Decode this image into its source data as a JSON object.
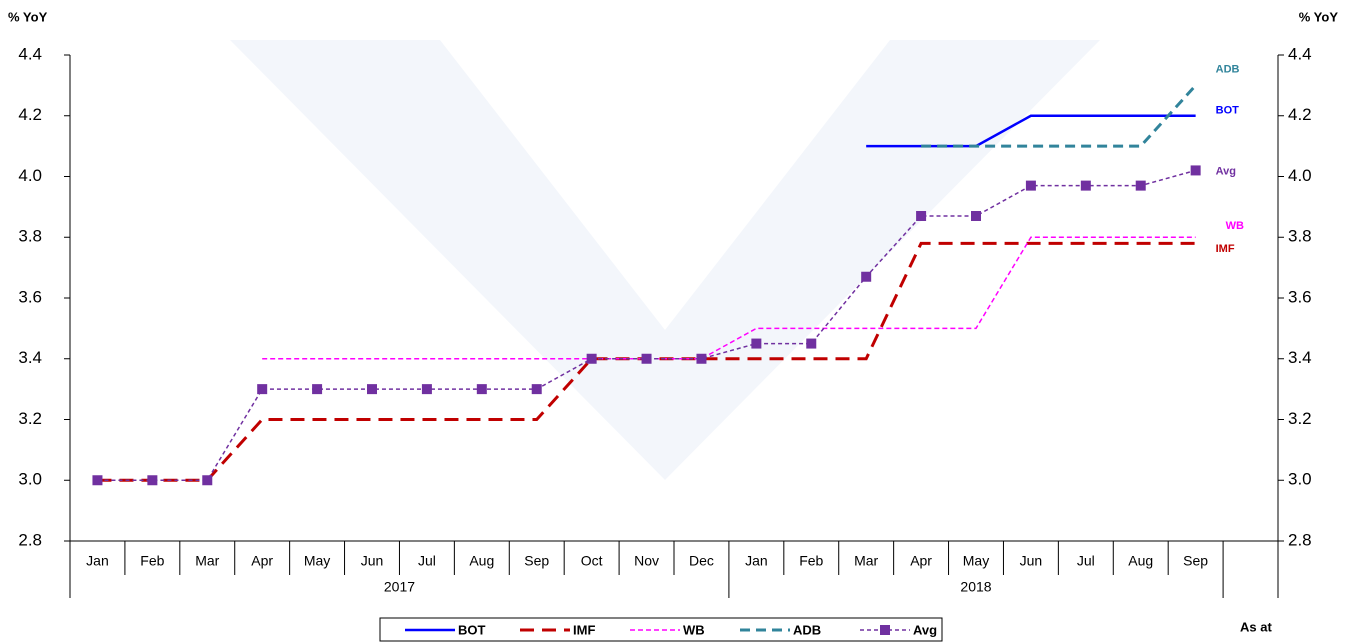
{
  "chart_data": {
    "type": "line",
    "y_label": "% YoY",
    "y2_label": "% YoY",
    "note": "As at",
    "categories": [
      "Jan",
      "Feb",
      "Mar",
      "Apr",
      "May",
      "Jun",
      "Jul",
      "Aug",
      "Sep",
      "Oct",
      "Nov",
      "Dec",
      "Jan",
      "Feb",
      "Mar",
      "Apr",
      "May",
      "Jun",
      "Jul",
      "Aug",
      "Sep",
      null
    ],
    "x_groups": [
      {
        "label": "2017",
        "span": 12
      },
      {
        "label": "2018",
        "span": 9
      }
    ],
    "ylim": [
      2.8,
      4.4
    ],
    "yticks": [
      2.8,
      {
        "value": 3,
        "label": "3.0"
      },
      3.2,
      3.4,
      3.6,
      3.8,
      {
        "value": 4,
        "label": "4.0"
      },
      4.2,
      4.4
    ],
    "y2lim": [
      2.8,
      4.4
    ],
    "y2ticks": [
      2.8,
      {
        "value": 3,
        "label": "3.0"
      },
      3.2,
      3.4,
      3.6,
      3.8,
      {
        "value": 4,
        "label": "4.0"
      },
      4.2,
      4.4
    ],
    "series": [
      {
        "name": "BOT",
        "color": "#0000ff",
        "values": [
          null,
          null,
          null,
          null,
          null,
          null,
          null,
          null,
          null,
          null,
          null,
          null,
          null,
          null,
          4.1,
          4.1,
          4.1,
          4.2,
          4.2,
          4.2,
          4.2,
          null
        ]
      },
      {
        "name": "IMF",
        "color": "#c00000",
        "values": [
          3.0,
          3.0,
          3.0,
          3.2,
          3.2,
          3.2,
          3.2,
          3.2,
          3.2,
          3.4,
          3.4,
          3.4,
          3.4,
          3.4,
          3.4,
          3.78,
          3.78,
          3.78,
          3.78,
          3.78,
          3.78,
          null
        ]
      },
      {
        "name": "WB",
        "color": "#ff00ff",
        "values": [
          null,
          null,
          null,
          3.4,
          3.4,
          3.4,
          3.4,
          3.4,
          3.4,
          3.4,
          3.4,
          3.4,
          3.5,
          3.5,
          3.5,
          3.5,
          3.5,
          3.8,
          3.8,
          3.8,
          3.8,
          null
        ]
      },
      {
        "name": "ADB",
        "color": "#31849b",
        "values": [
          null,
          null,
          null,
          null,
          null,
          null,
          null,
          null,
          null,
          null,
          null,
          null,
          null,
          null,
          null,
          4.1,
          4.1,
          4.1,
          4.1,
          4.1,
          4.3,
          null
        ]
      },
      {
        "name": "Avg",
        "color": "#7030a0",
        "values": [
          3.0,
          3.0,
          3.0,
          3.3,
          3.3,
          3.3,
          3.3,
          3.3,
          3.3,
          3.4,
          3.4,
          3.4,
          3.45,
          3.45,
          3.67,
          3.87,
          3.87,
          3.97,
          3.97,
          3.97,
          4.02,
          null
        ]
      }
    ]
  }
}
